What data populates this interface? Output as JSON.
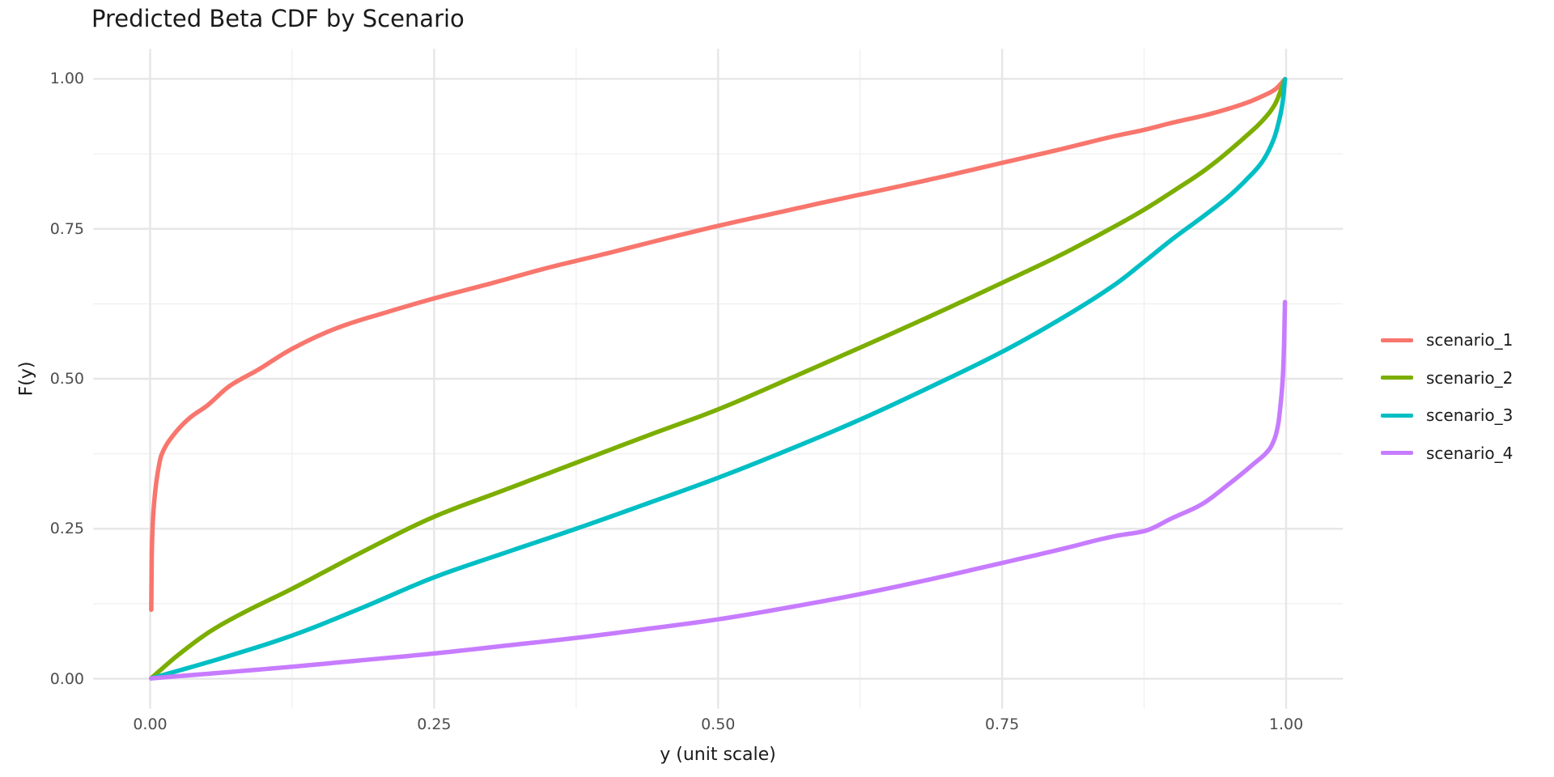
{
  "title": "Predicted Beta CDF by Scenario",
  "colors": {
    "background": "#ffffff",
    "grid_major": "#e6e6e6",
    "grid_minor": "#efefef",
    "tick_text": "#4d4d4d",
    "title_text": "#1a1a1a"
  },
  "chart_data": {
    "type": "line",
    "title": "Predicted Beta CDF by Scenario",
    "xlabel": "y (unit scale)",
    "ylabel": "F(y)",
    "x_tick_labels": [
      "0.00",
      "0.25",
      "0.50",
      "0.75",
      "1.00"
    ],
    "x_tick_values": [
      0,
      0.25,
      0.5,
      0.75,
      1.0
    ],
    "y_tick_labels": [
      "0.00",
      "0.25",
      "0.50",
      "0.75",
      "1.00"
    ],
    "y_tick_values": [
      0,
      0.25,
      0.5,
      0.75,
      1.0
    ],
    "x_minor_values": [
      0.125,
      0.375,
      0.625,
      0.875
    ],
    "y_minor_values": [
      0.125,
      0.375,
      0.625,
      0.875
    ],
    "xlim": [
      -0.05,
      1.05
    ],
    "ylim": [
      -0.05,
      1.05
    ],
    "grid": "major+minor",
    "legend_position": "right",
    "line_width": 5.5,
    "series": [
      {
        "name": "scenario_1",
        "color": "#F8766D",
        "points": [
          [
            0.001,
            0.115
          ],
          [
            0.0016,
            0.22
          ],
          [
            0.003,
            0.28
          ],
          [
            0.006,
            0.335
          ],
          [
            0.01,
            0.373
          ],
          [
            0.02,
            0.405
          ],
          [
            0.035,
            0.435
          ],
          [
            0.05,
            0.455
          ],
          [
            0.07,
            0.488
          ],
          [
            0.095,
            0.515
          ],
          [
            0.125,
            0.55
          ],
          [
            0.165,
            0.585
          ],
          [
            0.21,
            0.612
          ],
          [
            0.25,
            0.634
          ],
          [
            0.3,
            0.659
          ],
          [
            0.35,
            0.685
          ],
          [
            0.4,
            0.708
          ],
          [
            0.45,
            0.732
          ],
          [
            0.5,
            0.755
          ],
          [
            0.55,
            0.776
          ],
          [
            0.6,
            0.797
          ],
          [
            0.65,
            0.817
          ],
          [
            0.7,
            0.838
          ],
          [
            0.75,
            0.86
          ],
          [
            0.8,
            0.882
          ],
          [
            0.85,
            0.905
          ],
          [
            0.875,
            0.915
          ],
          [
            0.9,
            0.927
          ],
          [
            0.93,
            0.94
          ],
          [
            0.965,
            0.96
          ],
          [
            0.98,
            0.972
          ],
          [
            0.99,
            0.982
          ],
          [
            0.999,
            0.9995
          ]
        ]
      },
      {
        "name": "scenario_2",
        "color": "#7CAE00",
        "points": [
          [
            0.001,
            0.001
          ],
          [
            0.025,
            0.04
          ],
          [
            0.053,
            0.079
          ],
          [
            0.08,
            0.108
          ],
          [
            0.125,
            0.15
          ],
          [
            0.1875,
            0.212
          ],
          [
            0.25,
            0.27
          ],
          [
            0.3125,
            0.315
          ],
          [
            0.375,
            0.36
          ],
          [
            0.4375,
            0.405
          ],
          [
            0.5,
            0.449
          ],
          [
            0.5625,
            0.5
          ],
          [
            0.625,
            0.552
          ],
          [
            0.6875,
            0.605
          ],
          [
            0.75,
            0.66
          ],
          [
            0.8,
            0.705
          ],
          [
            0.85,
            0.755
          ],
          [
            0.875,
            0.782
          ],
          [
            0.9,
            0.812
          ],
          [
            0.93,
            0.85
          ],
          [
            0.965,
            0.905
          ],
          [
            0.98,
            0.932
          ],
          [
            0.99,
            0.957
          ],
          [
            0.999,
            0.9995
          ]
        ]
      },
      {
        "name": "scenario_3",
        "color": "#00BFC4",
        "points": [
          [
            0.001,
            0.0005
          ],
          [
            0.0625,
            0.034
          ],
          [
            0.125,
            0.072
          ],
          [
            0.1875,
            0.119
          ],
          [
            0.25,
            0.169
          ],
          [
            0.3125,
            0.21
          ],
          [
            0.375,
            0.25
          ],
          [
            0.4375,
            0.292
          ],
          [
            0.5,
            0.335
          ],
          [
            0.5625,
            0.382
          ],
          [
            0.625,
            0.432
          ],
          [
            0.6875,
            0.487
          ],
          [
            0.75,
            0.545
          ],
          [
            0.8,
            0.598
          ],
          [
            0.85,
            0.658
          ],
          [
            0.875,
            0.695
          ],
          [
            0.9,
            0.733
          ],
          [
            0.93,
            0.775
          ],
          [
            0.95,
            0.805
          ],
          [
            0.965,
            0.832
          ],
          [
            0.979,
            0.862
          ],
          [
            0.989,
            0.899
          ],
          [
            0.994,
            0.932
          ],
          [
            0.997,
            0.962
          ],
          [
            0.999,
            0.9995
          ]
        ]
      },
      {
        "name": "scenario_4",
        "color": "#C77CFF",
        "points": [
          [
            0.001,
            0.0005
          ],
          [
            0.0625,
            0.01
          ],
          [
            0.125,
            0.02
          ],
          [
            0.1875,
            0.031
          ],
          [
            0.25,
            0.042
          ],
          [
            0.3125,
            0.055
          ],
          [
            0.375,
            0.068
          ],
          [
            0.4375,
            0.083
          ],
          [
            0.5,
            0.099
          ],
          [
            0.5625,
            0.119
          ],
          [
            0.625,
            0.141
          ],
          [
            0.6875,
            0.166
          ],
          [
            0.75,
            0.193
          ],
          [
            0.8,
            0.215
          ],
          [
            0.85,
            0.238
          ],
          [
            0.875,
            0.246
          ],
          [
            0.9,
            0.268
          ],
          [
            0.925,
            0.29
          ],
          [
            0.95,
            0.325
          ],
          [
            0.97,
            0.356
          ],
          [
            0.985,
            0.382
          ],
          [
            0.99,
            0.401
          ],
          [
            0.993,
            0.424
          ],
          [
            0.995,
            0.455
          ],
          [
            0.997,
            0.5
          ],
          [
            0.998,
            0.545
          ],
          [
            0.999,
            0.628
          ]
        ]
      }
    ]
  }
}
